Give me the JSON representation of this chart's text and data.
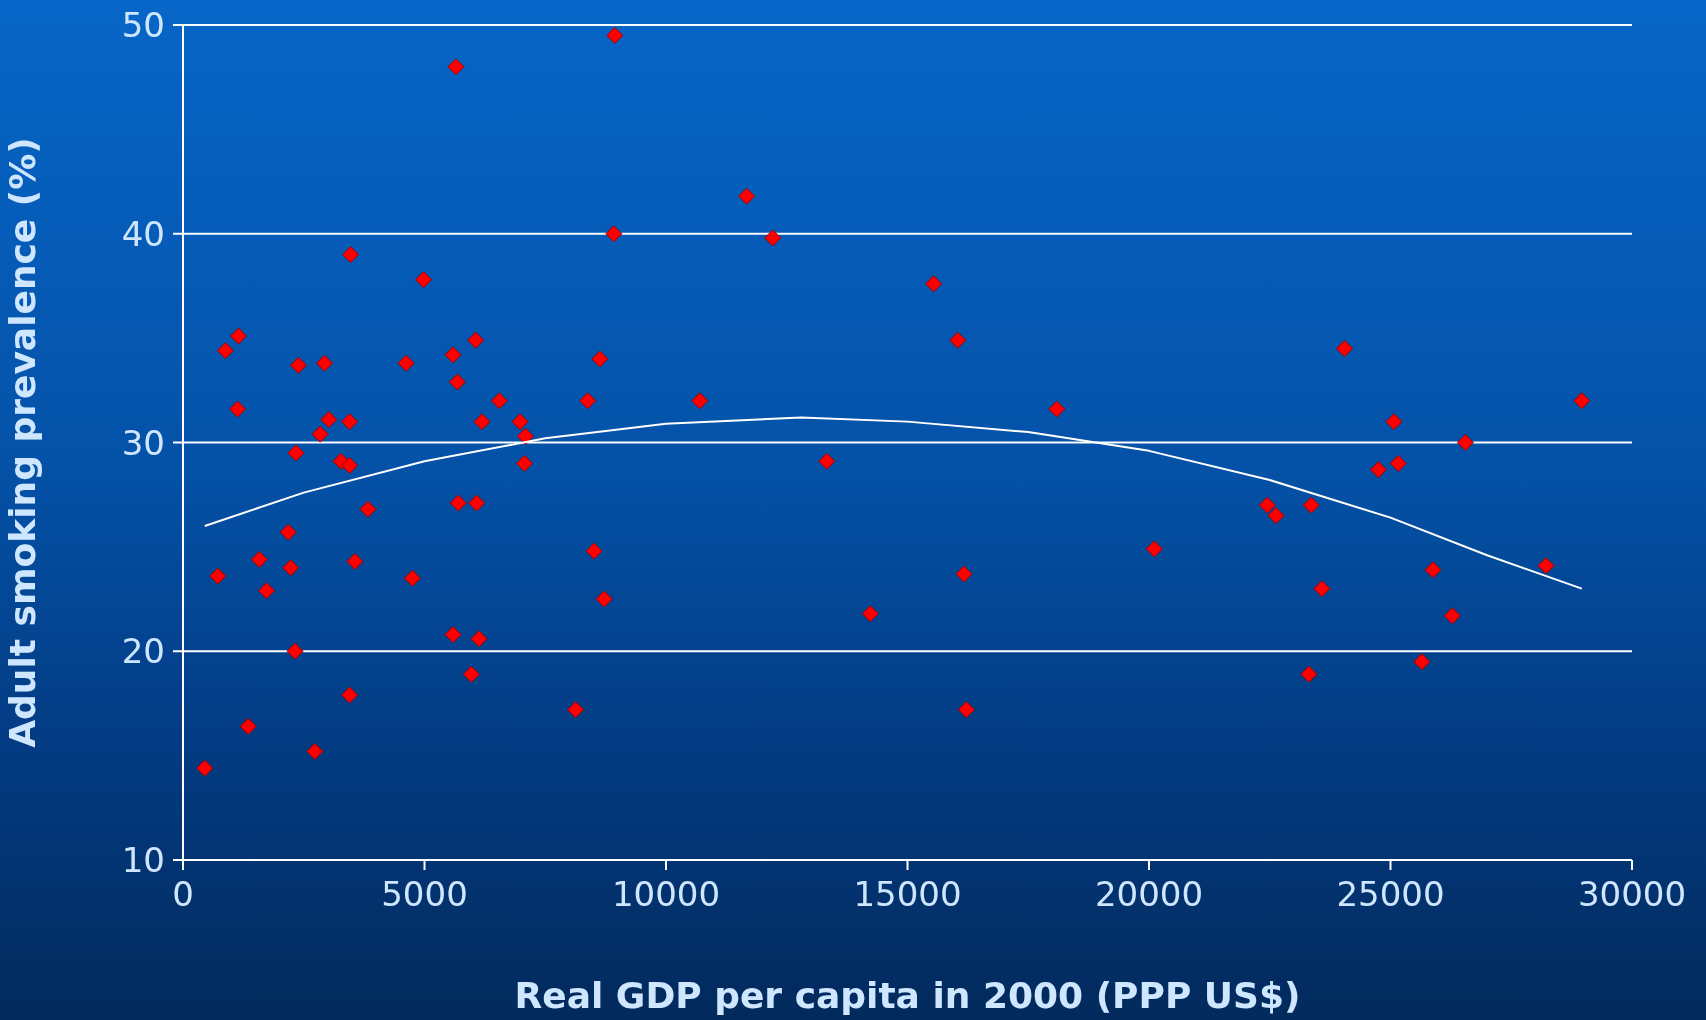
{
  "chart_data": {
    "type": "scatter",
    "xlabel": "Real GDP per capita in 2000 (PPP US$)",
    "ylabel": "Adult smoking prevalence (%)",
    "xlim": [
      0,
      30000
    ],
    "xticks": [
      0,
      5000,
      10000,
      15000,
      20000,
      25000,
      30000
    ],
    "ylim": [
      10,
      50
    ],
    "yticks": [
      10,
      20,
      30,
      40,
      50
    ],
    "grid": "y",
    "series": [
      {
        "marker": "diamond",
        "color": "#ff0000",
        "x": [
          450,
          720,
          880,
          1150,
          1130,
          1350,
          1580,
          1730,
          2180,
          2230,
          2320,
          2340,
          2390,
          2730,
          2840,
          2930,
          3020,
          3270,
          3450,
          3450,
          3450,
          3470,
          3560,
          3830,
          4620,
          4750,
          4980,
          5590,
          5590,
          5650,
          5680,
          5700,
          5970,
          6060,
          6080,
          6130,
          6190,
          6550,
          6980,
          7090,
          7070,
          8130,
          8380,
          8510,
          8630,
          8720,
          8920,
          8940,
          10700,
          11670,
          12210,
          13330,
          14230,
          15540,
          16040,
          16170,
          16220,
          18090,
          20110,
          22450,
          22630,
          23310,
          23360,
          23580,
          24050,
          24750,
          25070,
          25160,
          25650,
          25880,
          26280,
          26550,
          28220,
          28960
        ],
        "values": [
          14.4,
          23.6,
          34.4,
          35.1,
          31.6,
          16.4,
          24.4,
          22.9,
          25.7,
          24.0,
          20.0,
          29.5,
          33.7,
          15.2,
          30.4,
          33.8,
          31.1,
          29.1,
          28.9,
          31.0,
          17.9,
          39.0,
          24.3,
          26.8,
          33.8,
          23.5,
          37.8,
          20.8,
          34.2,
          48.0,
          32.9,
          27.1,
          18.9,
          34.9,
          27.1,
          20.6,
          31.0,
          32.0,
          31.0,
          30.3,
          29.0,
          17.2,
          32.0,
          24.8,
          34.0,
          22.5,
          40.0,
          49.5,
          32.0,
          41.8,
          39.8,
          29.1,
          21.8,
          37.6,
          34.9,
          23.7,
          17.2,
          31.6,
          24.9,
          27.0,
          26.5,
          18.9,
          27.0,
          23.0,
          34.5,
          28.7,
          31.0,
          29.0,
          19.5,
          23.9,
          21.7,
          30.0,
          24.1,
          32.0
        ]
      },
      {
        "type": "line",
        "color": "#ffffff",
        "x": [
          450,
          2500,
          5000,
          7500,
          10000,
          12800,
          15000,
          17500,
          20000,
          22500,
          25000,
          27000,
          28960
        ],
        "values": [
          26.0,
          27.6,
          29.1,
          30.2,
          30.9,
          31.2,
          31.0,
          30.5,
          29.6,
          28.2,
          26.4,
          24.6,
          23.0
        ]
      }
    ]
  }
}
